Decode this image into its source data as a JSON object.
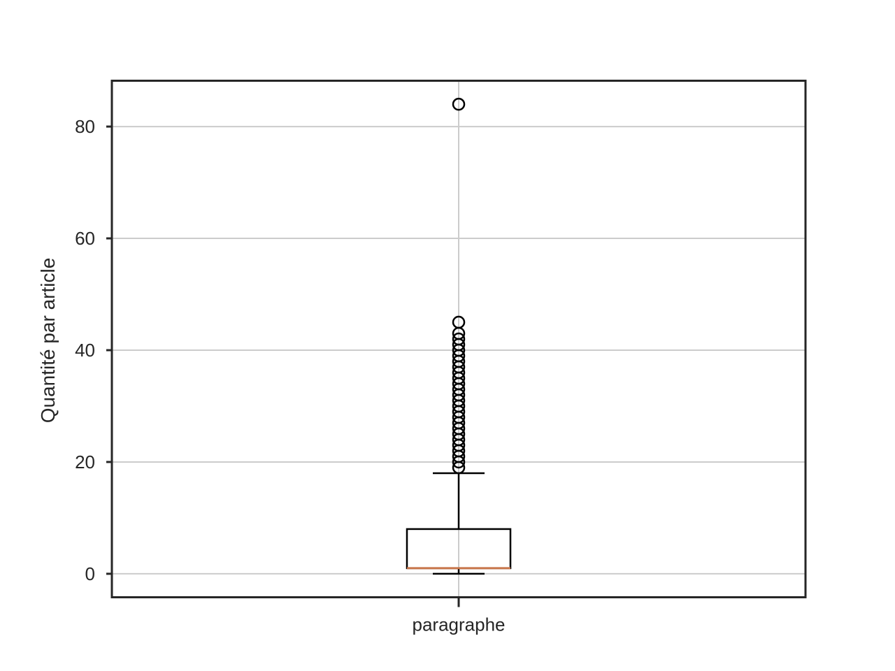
{
  "chart_data": {
    "type": "box",
    "ylabel": "Quantité par article",
    "xlabel": "",
    "categories": [
      "paragraphe"
    ],
    "ylim": [
      -4.2,
      88.2
    ],
    "yticks": [
      0,
      20,
      40,
      60,
      80
    ],
    "grid": true,
    "boxes": [
      {
        "label": "paragraphe",
        "min": 0,
        "q1": 1,
        "median": 1,
        "q3": 8,
        "whisker_high": 18,
        "outliers": [
          19,
          20,
          21,
          22,
          23,
          24,
          25,
          26,
          27,
          28,
          29,
          30,
          31,
          32,
          33,
          34,
          35,
          36,
          37,
          38,
          39,
          40,
          41,
          42,
          43,
          45,
          84
        ]
      }
    ],
    "colors": {
      "median": "#c8754a",
      "box": "#000000",
      "grid": "#cccccc",
      "frame": "#262626"
    }
  }
}
